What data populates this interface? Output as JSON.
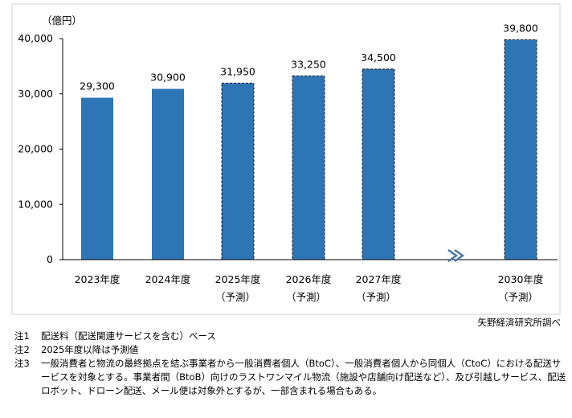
{
  "chart_data": {
    "type": "bar",
    "unit_label": "（億円）",
    "categories": [
      "2023年度",
      "2024年度",
      "2025年度",
      "2026年度",
      "2027年度",
      "2030年度"
    ],
    "category_sublabels": [
      "",
      "",
      "（予測）",
      "（予測）",
      "（予測）",
      "（予測）"
    ],
    "values": [
      29300,
      30900,
      31950,
      33250,
      34500,
      39800
    ],
    "data_labels": [
      "29,300",
      "30,900",
      "31,950",
      "33,250",
      "34,500",
      "39,800"
    ],
    "forecast": [
      false,
      false,
      true,
      true,
      true,
      true
    ],
    "axis_break_between": [
      "2027年度",
      "2030年度"
    ],
    "ylim": [
      0,
      40000
    ],
    "yticks": [
      "0",
      "10,000",
      "20,000",
      "30,000",
      "40,000"
    ],
    "ytick_values": [
      0,
      10000,
      20000,
      30000,
      40000
    ],
    "bar_color": "#2E75B6",
    "break_color": "#4A7BA7",
    "grid": false,
    "legend": "none"
  },
  "source": "矢野経済研究所調べ",
  "notes": [
    {
      "label": "注1",
      "text": "配送料（配送関連サービスを含む）ベース"
    },
    {
      "label": "注2",
      "text": "2025年度以降は予測値"
    },
    {
      "label": "注3",
      "text": "一般消費者と物流の最終拠点を結ぶ事業者から一般消費者個人（BtoC）、一般消費者個人から同個人（CtoC）における配送サービスを対象とする。事業者間（BtoB）向けのラストワンマイル物流（施設や店舗向け配送など）、及び引越しサービス、配送ロボット、ドローン配送、メール便は対象外とするが、一部含まれる場合もある。"
    }
  ]
}
